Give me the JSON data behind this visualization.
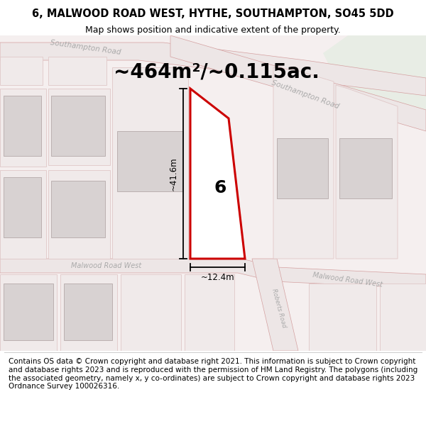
{
  "title": "6, MALWOOD ROAD WEST, HYTHE, SOUTHAMPTON, SO45 5DD",
  "subtitle": "Map shows position and indicative extent of the property.",
  "area_text": "~464m²/~0.115ac.",
  "width_label": "~12.4m",
  "height_label": "~41.6m",
  "number_label": "6",
  "footer_text": "Contains OS data © Crown copyright and database right 2021. This information is subject to Crown copyright and database rights 2023 and is reproduced with the permission of HM Land Registry. The polygons (including the associated geometry, namely x, y co-ordinates) are subject to Crown copyright and database rights 2023 Ordnance Survey 100026316.",
  "bg_color": "#ffffff",
  "map_bg": "#f5efef",
  "road_fill": "#ede6e6",
  "road_stroke": "#d4a0a0",
  "building_fill": "#d8d2d2",
  "building_stroke": "#bbb0b0",
  "plot_fill": "#f0eaea",
  "plot_stroke": "#e0c8c8",
  "property_fill": "#ffffff",
  "property_stroke": "#cc0000",
  "green_fill": "#e8ede5",
  "road_text_color": "#aaaaaa",
  "title_fontsize": 10.5,
  "subtitle_fontsize": 9,
  "area_fontsize": 20,
  "footer_fontsize": 7.5,
  "number_fontsize": 18
}
